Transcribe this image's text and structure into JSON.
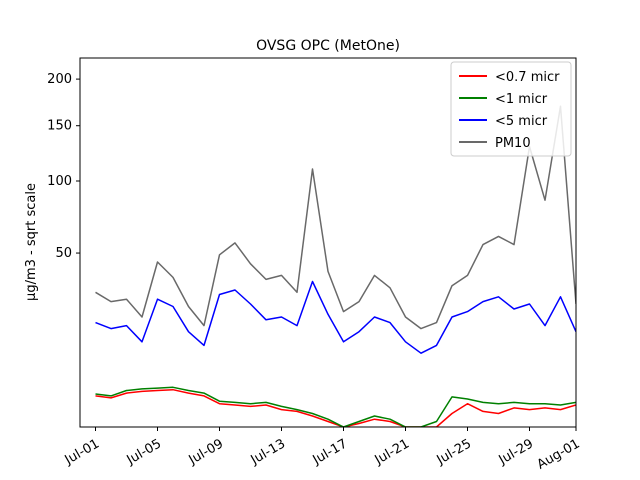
{
  "chart_data": {
    "type": "line",
    "title": "OVSG OPC (MetOne)",
    "xlabel": "",
    "ylabel": "µg/m3 - sqrt scale",
    "y_scale": "sqrt",
    "ylim": [
      0,
      225
    ],
    "y_ticks": [
      50,
      100,
      150,
      200
    ],
    "x_range": [
      "2021-06-30",
      "2021-08-01"
    ],
    "x_ticks": [
      "Jul-01",
      "Jul-05",
      "Jul-09",
      "Jul-13",
      "Jul-17",
      "Jul-21",
      "Jul-25",
      "Jul-29",
      "Aug-01"
    ],
    "legend_position": "top-right",
    "grid": false,
    "series": [
      {
        "name": "<0.7 micr",
        "color": "#ff0000",
        "x": [
          "2021-07-01",
          "2021-07-02",
          "2021-07-03",
          "2021-07-04",
          "2021-07-05",
          "2021-07-06",
          "2021-07-07",
          "2021-07-08",
          "2021-07-09",
          "2021-07-10",
          "2021-07-11",
          "2021-07-12",
          "2021-07-13",
          "2021-07-14",
          "2021-07-15",
          "2021-07-16",
          "2021-07-17",
          "2021-07-18",
          "2021-07-19",
          "2021-07-20",
          "2021-07-21",
          "2021-07-22",
          "2021-07-23",
          "2021-07-24",
          "2021-07-25",
          "2021-07-26",
          "2021-07-27",
          "2021-07-28",
          "2021-07-29",
          "2021-07-30",
          "2021-07-31",
          "2021-08-01"
        ],
        "y": [
          1.6,
          1.4,
          1.9,
          2.1,
          2.2,
          2.3,
          1.9,
          1.6,
          0.9,
          0.8,
          0.7,
          0.8,
          0.5,
          0.4,
          0.2,
          0.05,
          0.0,
          0.02,
          0.1,
          0.05,
          0.0,
          0.0,
          0.0,
          0.3,
          0.9,
          0.4,
          0.3,
          0.6,
          0.5,
          0.6,
          0.5,
          0.8
        ]
      },
      {
        "name": "<1 micr",
        "color": "#008000",
        "x": [
          "2021-07-01",
          "2021-07-02",
          "2021-07-03",
          "2021-07-04",
          "2021-07-05",
          "2021-07-06",
          "2021-07-07",
          "2021-07-08",
          "2021-07-09",
          "2021-07-10",
          "2021-07-11",
          "2021-07-12",
          "2021-07-13",
          "2021-07-14",
          "2021-07-15",
          "2021-07-16",
          "2021-07-17",
          "2021-07-18",
          "2021-07-19",
          "2021-07-20",
          "2021-07-21",
          "2021-07-22",
          "2021-07-23",
          "2021-07-24",
          "2021-07-25",
          "2021-07-26",
          "2021-07-27",
          "2021-07-28",
          "2021-07-29",
          "2021-07-30",
          "2021-07-31",
          "2021-08-01"
        ],
        "y": [
          1.8,
          1.6,
          2.2,
          2.4,
          2.5,
          2.6,
          2.2,
          1.9,
          1.1,
          1.0,
          0.9,
          1.0,
          0.7,
          0.5,
          0.3,
          0.1,
          0.0,
          0.05,
          0.2,
          0.1,
          0.0,
          0.0,
          0.05,
          1.5,
          1.3,
          1.0,
          0.9,
          1.0,
          0.9,
          0.9,
          0.8,
          1.0
        ]
      },
      {
        "name": "<5 micr",
        "color": "#0000ff",
        "x": [
          "2021-07-01",
          "2021-07-02",
          "2021-07-03",
          "2021-07-04",
          "2021-07-05",
          "2021-07-06",
          "2021-07-07",
          "2021-07-08",
          "2021-07-09",
          "2021-07-10",
          "2021-07-11",
          "2021-07-12",
          "2021-07-13",
          "2021-07-14",
          "2021-07-15",
          "2021-07-16",
          "2021-07-17",
          "2021-07-18",
          "2021-07-19",
          "2021-07-20",
          "2021-07-21",
          "2021-07-22",
          "2021-07-23",
          "2021-07-24",
          "2021-07-25",
          "2021-07-26",
          "2021-07-27",
          "2021-07-28",
          "2021-07-29",
          "2021-07-30",
          "2021-07-31",
          "2021-08-01"
        ],
        "y": [
          18,
          16,
          17,
          12,
          27,
          24,
          15,
          11,
          29,
          31,
          25,
          19,
          20,
          17,
          35,
          21,
          12,
          15,
          20,
          18,
          12,
          9,
          11,
          20,
          22,
          26,
          28,
          23,
          25,
          17,
          28,
          15
        ]
      },
      {
        "name": "PM10",
        "color": "#696969",
        "x": [
          "2021-07-01",
          "2021-07-02",
          "2021-07-03",
          "2021-07-04",
          "2021-07-05",
          "2021-07-06",
          "2021-07-07",
          "2021-07-08",
          "2021-07-09",
          "2021-07-10",
          "2021-07-11",
          "2021-07-12",
          "2021-07-13",
          "2021-07-14",
          "2021-07-15",
          "2021-07-16",
          "2021-07-17",
          "2021-07-18",
          "2021-07-19",
          "2021-07-20",
          "2021-07-21",
          "2021-07-22",
          "2021-07-23",
          "2021-07-24",
          "2021-07-25",
          "2021-07-26",
          "2021-07-27",
          "2021-07-28",
          "2021-07-29",
          "2021-07-30",
          "2021-07-31",
          "2021-08-01"
        ],
        "y": [
          30,
          26,
          27,
          20,
          45,
          37,
          24,
          17,
          49,
          56,
          44,
          36,
          38,
          30,
          110,
          40,
          22,
          26,
          38,
          32,
          20,
          16,
          18,
          33,
          38,
          55,
          60,
          55,
          130,
          85,
          170,
          25
        ]
      }
    ]
  }
}
